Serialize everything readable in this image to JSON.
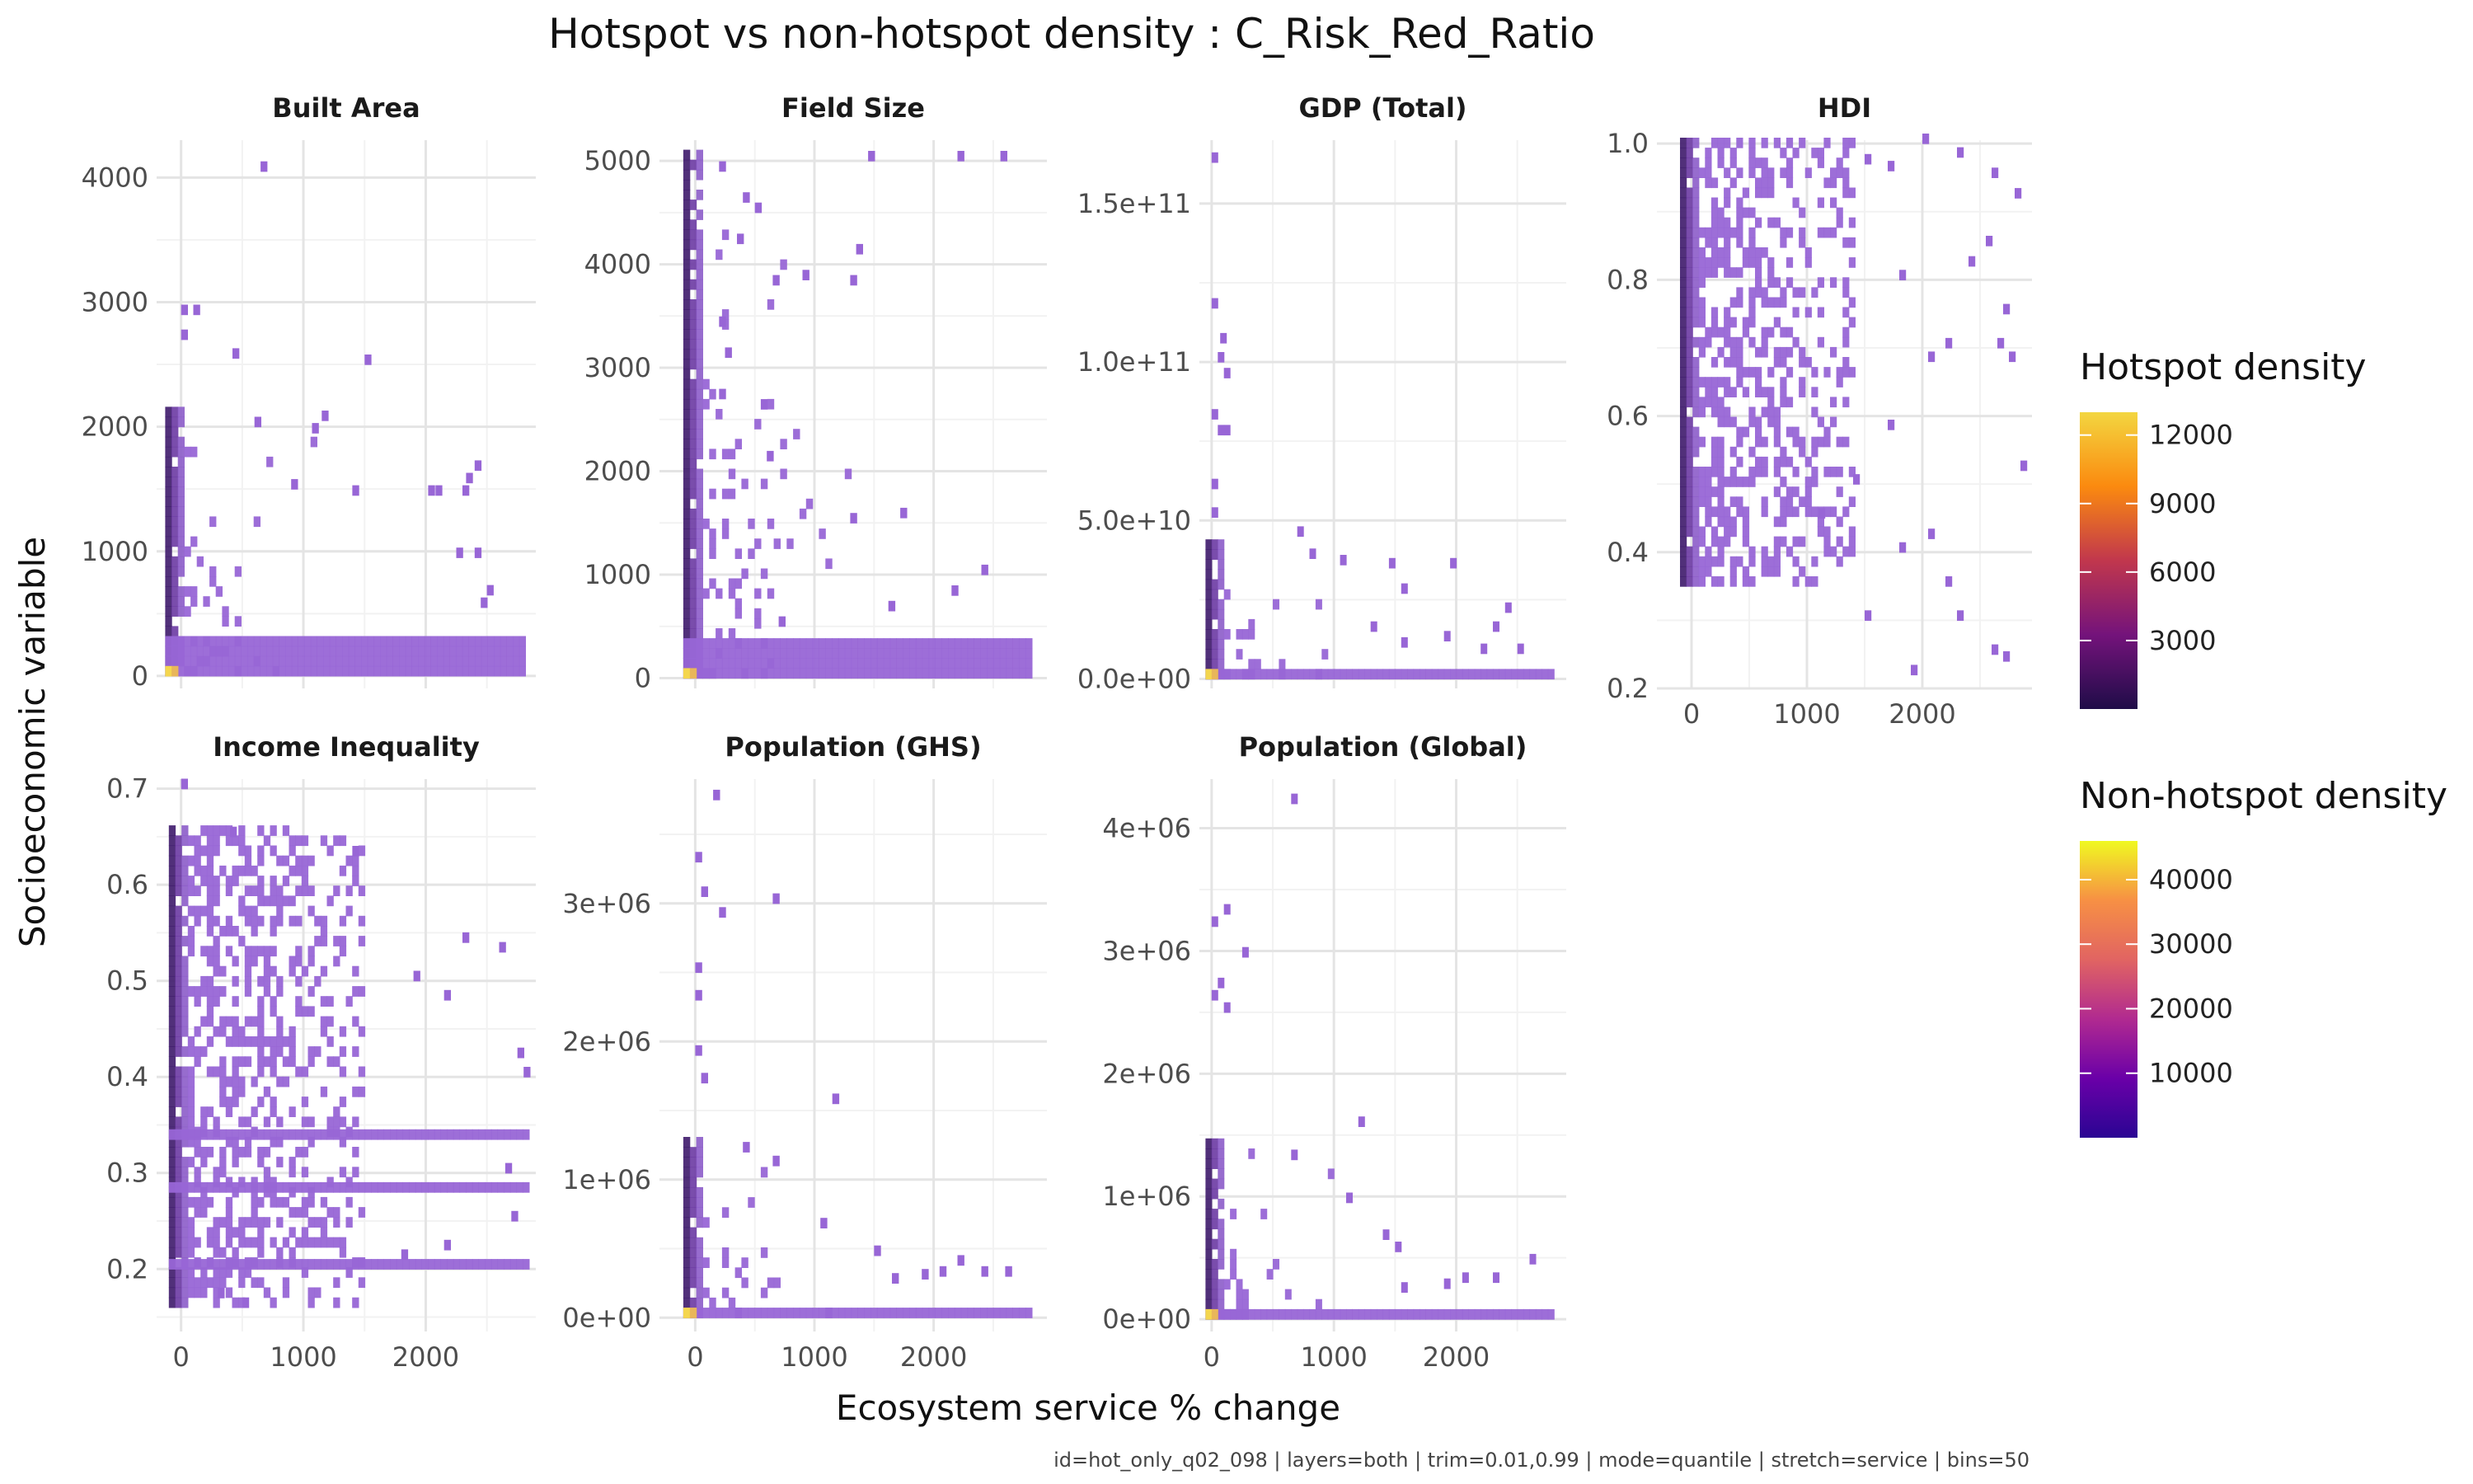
{
  "title": "Hotspot vs non-hotspot density : C_Risk_Red_Ratio",
  "caption": "id=hot_only_q02_098 | layers=both | trim=0.01,0.99 | mode=quantile | stretch=service | bins=50",
  "xlabel": "Ecosystem service % change",
  "ylabel": "Socioeconomic variable",
  "legend": {
    "hotspot": {
      "title": "Hotspot density",
      "labels": [
        "12000",
        "9000",
        "6000",
        "3000"
      ],
      "values": [
        12000,
        9000,
        6000,
        3000
      ],
      "max": 13000,
      "colors": [
        "#f3d640",
        "#fb8a0f",
        "#c1374d",
        "#74137b",
        "#1f0c48"
      ]
    },
    "nonhotspot": {
      "title": "Non-hotspot density",
      "labels": [
        "40000",
        "30000",
        "20000",
        "10000"
      ],
      "values": [
        40000,
        30000,
        20000,
        10000
      ],
      "max": 46000,
      "colors": [
        "#f0f921",
        "#f79044",
        "#e16462",
        "#b12a90",
        "#6a00a8",
        "#2a0593"
      ]
    }
  },
  "chart_data": [
    {
      "type": "heatmap",
      "title": "Built Area",
      "xlim": [
        -200,
        2900
      ],
      "xticks": [
        0,
        1000,
        2000
      ],
      "xtick_labels": [
        "0",
        "1000",
        "2000"
      ],
      "ylim": [
        -100,
        4300
      ],
      "yticks": [
        0,
        1000,
        2000,
        3000,
        4000
      ],
      "ytick_labels": [
        "0",
        "1000",
        "2000",
        "3000",
        "4000"
      ],
      "x_band": [
        -130,
        2800
      ],
      "y_band": [
        0,
        2100
      ],
      "y_band_bottom_max": 300,
      "outliers": [
        [
          650,
          4050
        ],
        [
          0,
          2900
        ],
        [
          100,
          2900
        ],
        [
          0,
          2700
        ],
        [
          420,
          2550
        ],
        [
          1500,
          2500
        ],
        [
          600,
          2000
        ],
        [
          1150,
          2050
        ],
        [
          1070,
          1950
        ],
        [
          900,
          1500
        ],
        [
          1400,
          1450
        ],
        [
          2400,
          1650
        ],
        [
          2330,
          1550
        ],
        [
          2300,
          1450
        ],
        [
          2080,
          1450
        ],
        [
          2020,
          1450
        ],
        [
          2250,
          950
        ],
        [
          2400,
          950
        ],
        [
          2500,
          650
        ],
        [
          2450,
          550
        ]
      ]
    },
    {
      "type": "heatmap",
      "title": "Field Size",
      "xlim": [
        -300,
        2950
      ],
      "xticks": [
        0,
        1000,
        2000
      ],
      "xtick_labels": [
        "0",
        "1000",
        "2000"
      ],
      "ylim": [
        -100,
        5200
      ],
      "yticks": [
        0,
        1000,
        2000,
        3000,
        4000,
        5000
      ],
      "ytick_labels": [
        "0",
        "1000",
        "2000",
        "3000",
        "4000",
        "5000"
      ],
      "x_band": [
        -100,
        2800
      ],
      "y_band": [
        0,
        5050
      ],
      "y_band_bottom_max": 300,
      "outliers": [
        [
          200,
          4900
        ],
        [
          2200,
          5000
        ],
        [
          2560,
          5000
        ],
        [
          1450,
          5000
        ],
        [
          400,
          4600
        ],
        [
          500,
          4500
        ],
        [
          350,
          4200
        ],
        [
          1350,
          4100
        ],
        [
          1300,
          3800
        ],
        [
          900,
          3850
        ],
        [
          650,
          3800
        ],
        [
          200,
          3400
        ],
        [
          250,
          3100
        ],
        [
          200,
          2700
        ],
        [
          550,
          2600
        ],
        [
          600,
          2100
        ],
        [
          1300,
          1500
        ],
        [
          1720,
          1550
        ],
        [
          2400,
          1000
        ],
        [
          2150,
          800
        ],
        [
          1620,
          650
        ],
        [
          700,
          500
        ]
      ]
    },
    {
      "type": "heatmap",
      "title": "GDP (Total)",
      "xlim": [
        -100,
        2900
      ],
      "xticks": [
        0,
        1000,
        2000
      ],
      "xtick_labels": [
        "0",
        "1000",
        "2000"
      ],
      "ylim": [
        -3000000000.0,
        170000000000.0
      ],
      "yticks": [
        0,
        50000000000.0,
        100000000000.0,
        150000000000.0
      ],
      "ytick_labels": [
        "0.0e+00",
        "5.0e+10",
        "1.0e+11",
        "1.5e+11"
      ],
      "x_band": [
        -50,
        2800
      ],
      "y_band": [
        0,
        42000000000.0
      ],
      "y_band_bottom_max": 3000000000.0,
      "outliers": [
        [
          0,
          163000000000.0
        ],
        [
          0,
          117000000000.0
        ],
        [
          70,
          106000000000.0
        ],
        [
          50,
          100000000000.0
        ],
        [
          100,
          95000000000.0
        ],
        [
          0,
          82000000000.0
        ],
        [
          50,
          77000000000.0
        ],
        [
          100,
          77000000000.0
        ],
        [
          0,
          60000000000.0
        ],
        [
          0,
          51000000000.0
        ],
        [
          700,
          45000000000.0
        ],
        [
          800,
          38000000000.0
        ],
        [
          1050,
          36000000000.0
        ],
        [
          1450,
          35000000000.0
        ],
        [
          1550,
          27000000000.0
        ],
        [
          1950,
          35000000000.0
        ],
        [
          2400,
          21000000000.0
        ],
        [
          2300,
          15000000000.0
        ],
        [
          1900,
          12000000000.0
        ],
        [
          2200,
          8000000000.0
        ],
        [
          2500,
          8000000000.0
        ],
        [
          1550,
          10000000000.0
        ],
        [
          1300,
          15000000000.0
        ]
      ]
    },
    {
      "type": "heatmap",
      "title": "HDI",
      "xlim": [
        -300,
        2950
      ],
      "xticks": [
        0,
        1000,
        2000
      ],
      "xtick_labels": [
        "0",
        "1000",
        "2000"
      ],
      "ylim": [
        0.2,
        1.005
      ],
      "yticks": [
        0.2,
        0.4,
        0.6,
        0.8,
        1.0
      ],
      "ytick_labels": [
        "0.2",
        "0.4",
        "0.6",
        "0.8",
        "1.0"
      ],
      "x_band": [
        -100,
        1400
      ],
      "y_band": [
        0.35,
        1.0
      ],
      "y_band_bottom_max": 0,
      "outliers": [
        [
          2000,
          1.0
        ],
        [
          2300,
          0.98
        ],
        [
          1500,
          0.97
        ],
        [
          1700,
          0.96
        ],
        [
          2600,
          0.95
        ],
        [
          2800,
          0.92
        ],
        [
          2550,
          0.85
        ],
        [
          2400,
          0.82
        ],
        [
          1800,
          0.8
        ],
        [
          2700,
          0.75
        ],
        [
          2650,
          0.7
        ],
        [
          2200,
          0.7
        ],
        [
          2050,
          0.68
        ],
        [
          2750,
          0.68
        ],
        [
          2850,
          0.52
        ],
        [
          2050,
          0.42
        ],
        [
          1800,
          0.4
        ],
        [
          2200,
          0.35
        ],
        [
          2300,
          0.3
        ],
        [
          1500,
          0.3
        ],
        [
          2600,
          0.25
        ],
        [
          2700,
          0.24
        ],
        [
          1900,
          0.22
        ],
        [
          1400,
          0.5
        ],
        [
          1700,
          0.58
        ],
        [
          1100,
          0.45
        ]
      ]
    },
    {
      "type": "heatmap",
      "title": "Income Inequality",
      "xlim": [
        -200,
        2900
      ],
      "xticks": [
        0,
        1000,
        2000
      ],
      "xtick_labels": [
        "0",
        "1000",
        "2000"
      ],
      "ylim": [
        0.135,
        0.71
      ],
      "yticks": [
        0.2,
        0.3,
        0.4,
        0.5,
        0.6,
        0.7
      ],
      "ytick_labels": [
        "0.2",
        "0.3",
        "0.4",
        "0.5",
        "0.6",
        "0.7"
      ],
      "x_band": [
        -100,
        2800
      ],
      "y_band": [
        0.16,
        0.66
      ],
      "y_band_bottom_max": 0,
      "outliers": [
        [
          0,
          0.7
        ],
        [
          400,
          0.65
        ],
        [
          1400,
          0.63
        ],
        [
          2300,
          0.54
        ],
        [
          2600,
          0.53
        ],
        [
          2800,
          0.4
        ],
        [
          2750,
          0.42
        ],
        [
          2150,
          0.48
        ],
        [
          1900,
          0.5
        ],
        [
          2650,
          0.3
        ],
        [
          2700,
          0.25
        ],
        [
          2150,
          0.22
        ],
        [
          1800,
          0.21
        ],
        [
          500,
          0.16
        ],
        [
          300,
          0.17
        ]
      ]
    },
    {
      "type": "heatmap",
      "title": "Population (GHS)",
      "xlim": [
        -300,
        2950
      ],
      "xticks": [
        0,
        1000,
        2000
      ],
      "xtick_labels": [
        "0",
        "1000",
        "2000"
      ],
      "ylim": [
        -100000.0,
        3900000.0
      ],
      "yticks": [
        0,
        1000000.0,
        2000000.0,
        3000000.0
      ],
      "ytick_labels": [
        "0e+00",
        "1e+06",
        "2e+06",
        "3e+06"
      ],
      "x_band": [
        -100,
        2800
      ],
      "y_band": [
        0,
        1300000.0
      ],
      "y_band_bottom_max": 70000.0,
      "outliers": [
        [
          150,
          3750000.0
        ],
        [
          0,
          3300000.0
        ],
        [
          50,
          3050000.0
        ],
        [
          200,
          2900000.0
        ],
        [
          650,
          3000000.0
        ],
        [
          0,
          2500000.0
        ],
        [
          0,
          2300000.0
        ],
        [
          0,
          1900000.0
        ],
        [
          50,
          1700000.0
        ],
        [
          1150,
          1550000.0
        ],
        [
          650,
          1100000.0
        ],
        [
          1050,
          650000.0
        ],
        [
          1500,
          450000.0
        ],
        [
          2200,
          380000.0
        ],
        [
          2400,
          300000.0
        ],
        [
          2600,
          300000.0
        ],
        [
          1900,
          280000.0
        ],
        [
          2050,
          300000.0
        ],
        [
          1650,
          250000.0
        ],
        [
          400,
          1200000.0
        ]
      ]
    },
    {
      "type": "heatmap",
      "title": "Population (Global)",
      "xlim": [
        -100,
        2900
      ],
      "xticks": [
        0,
        1000,
        2000
      ],
      "xtick_labels": [
        "0",
        "1000",
        "2000"
      ],
      "ylim": [
        -100000.0,
        4400000.0
      ],
      "yticks": [
        0,
        1000000.0,
        2000000.0,
        3000000.0,
        4000000.0
      ],
      "ytick_labels": [
        "0e+00",
        "1e+06",
        "2e+06",
        "3e+06",
        "4e+06"
      ],
      "x_band": [
        -50,
        2800
      ],
      "y_band": [
        0,
        1400000.0
      ],
      "y_band_bottom_max": 80000.0,
      "outliers": [
        [
          650,
          4200000.0
        ],
        [
          100,
          3300000.0
        ],
        [
          0,
          3200000.0
        ],
        [
          250,
          2950000.0
        ],
        [
          0,
          2600000.0
        ],
        [
          100,
          2500000.0
        ],
        [
          50,
          2700000.0
        ],
        [
          1200,
          1570000.0
        ],
        [
          650,
          1300000.0
        ],
        [
          1100,
          950000.0
        ],
        [
          1400,
          650000.0
        ],
        [
          1500,
          550000.0
        ],
        [
          2600,
          450000.0
        ],
        [
          2300,
          300000.0
        ],
        [
          2050,
          300000.0
        ],
        [
          1900,
          250000.0
        ],
        [
          1550,
          220000.0
        ]
      ]
    }
  ]
}
